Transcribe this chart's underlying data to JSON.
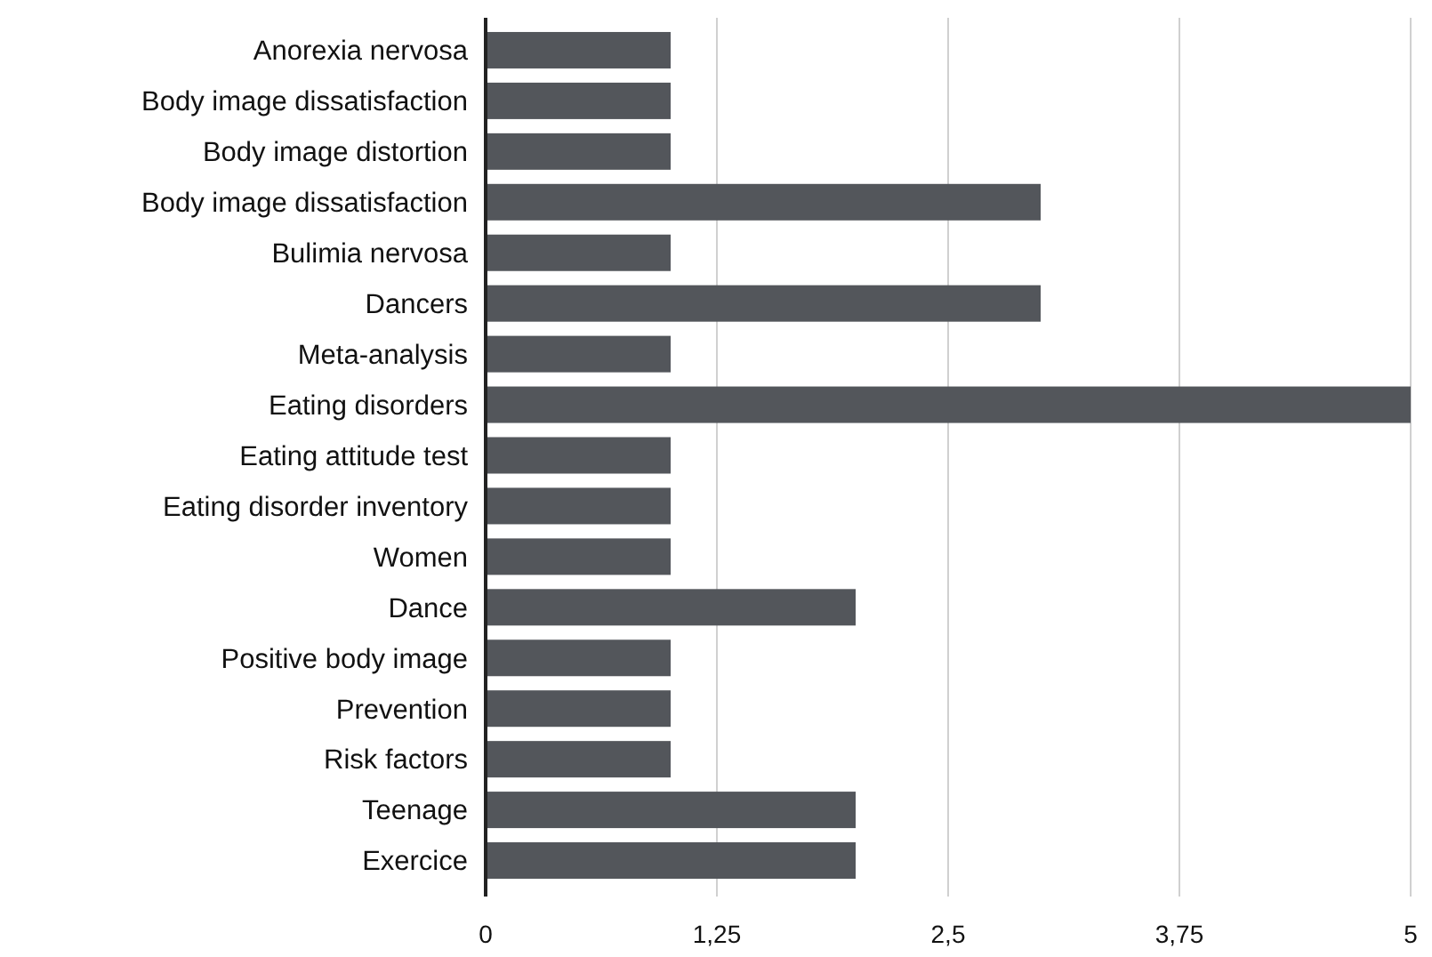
{
  "chart_data": {
    "type": "bar",
    "orientation": "horizontal",
    "categories": [
      "Anorexia nervosa",
      "Body image dissatisfaction",
      "Body image distortion",
      "Body image dissatisfaction",
      "Bulimia nervosa",
      "Dancers",
      "Meta-analysis",
      "Eating disorders",
      "Eating attitude test",
      "Eating disorder inventory",
      "Women",
      "Dance",
      "Positive body image",
      "Prevention",
      "Risk factors",
      "Teenage",
      "Exercice"
    ],
    "values": [
      1,
      1,
      1,
      3,
      1,
      3,
      1,
      5,
      1,
      1,
      1,
      2,
      1,
      1,
      1,
      2,
      2
    ],
    "color": "#53565b",
    "xlim": [
      0,
      5
    ],
    "xticks": [
      0,
      {
        "value": 1.25,
        "label": "1,25"
      },
      {
        "value": 2.5,
        "label": "2,5"
      },
      {
        "value": 3.75,
        "label": "3,75"
      },
      5
    ],
    "grid": "x"
  }
}
